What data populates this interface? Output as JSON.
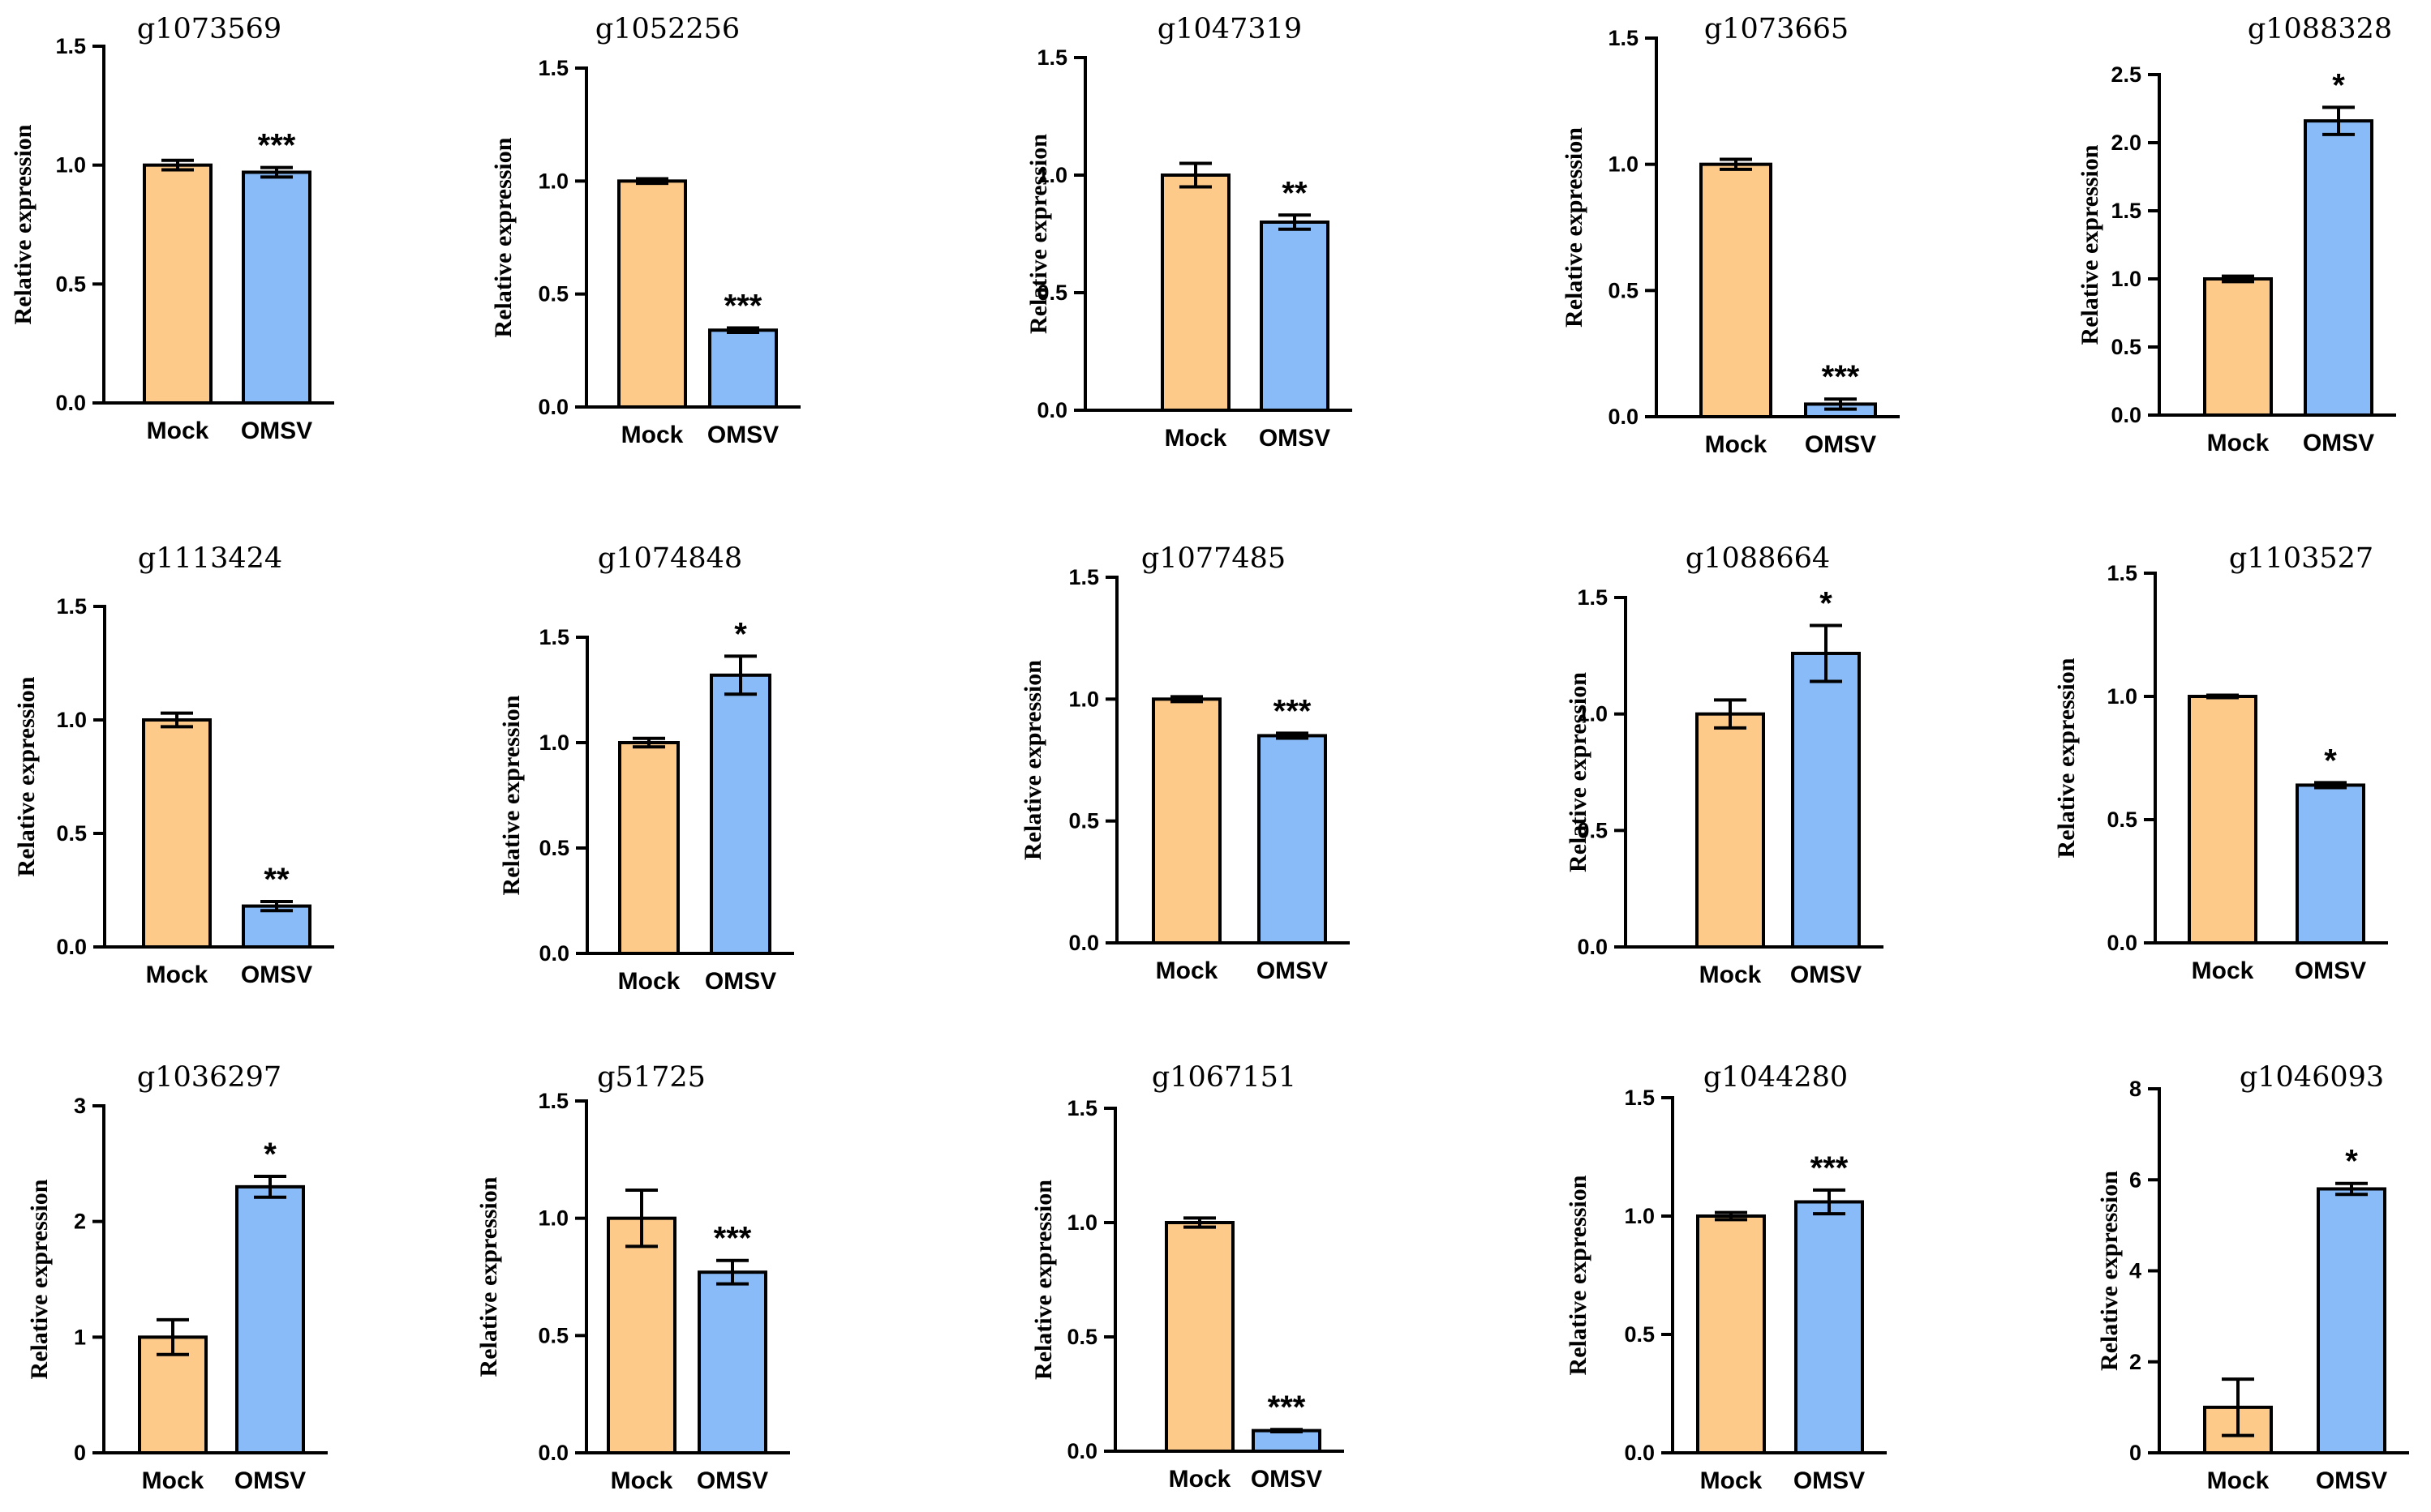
{
  "colors": {
    "mock": "#fdca8a",
    "omsv": "#88bbf8",
    "stroke": "#000000"
  },
  "chart_data": [
    {
      "type": "bar",
      "title": "g1073569",
      "ylabel": "Relative expression",
      "categories": [
        "Mock",
        "OMSV"
      ],
      "values": [
        1.0,
        0.97
      ],
      "errors": [
        0.02,
        0.02
      ],
      "ylim": [
        0,
        1.5
      ],
      "yticks": [
        0,
        0.5,
        1.0,
        1.5
      ],
      "tick_labels": [
        "0.0",
        "0.5",
        "1.0",
        "1.5"
      ],
      "significance": [
        "",
        "***"
      ]
    },
    {
      "type": "bar",
      "title": "g1052256",
      "ylabel": "Relative expression",
      "categories": [
        "Mock",
        "OMSV"
      ],
      "values": [
        1.0,
        0.34
      ],
      "errors": [
        0.01,
        0.01
      ],
      "ylim": [
        0,
        1.5
      ],
      "yticks": [
        0,
        0.5,
        1.0,
        1.5
      ],
      "tick_labels": [
        "0.0",
        "0.5",
        "1.0",
        "1.5"
      ],
      "significance": [
        "",
        "***"
      ]
    },
    {
      "type": "bar",
      "title": "g1047319",
      "ylabel": "Relative expression",
      "categories": [
        "Mock",
        "OMSV"
      ],
      "values": [
        1.0,
        0.8
      ],
      "errors": [
        0.05,
        0.03
      ],
      "ylim": [
        0,
        1.5
      ],
      "yticks": [
        0,
        0.5,
        1.0,
        1.5
      ],
      "tick_labels": [
        "0.0",
        "0.5",
        "1.0",
        "1.5"
      ],
      "significance": [
        "",
        "**"
      ]
    },
    {
      "type": "bar",
      "title": "g1073665",
      "ylabel": "Relative expression",
      "categories": [
        "Mock",
        "OMSV"
      ],
      "values": [
        1.0,
        0.05
      ],
      "errors": [
        0.02,
        0.02
      ],
      "ylim": [
        0,
        1.5
      ],
      "yticks": [
        0,
        0.5,
        1.0,
        1.5
      ],
      "tick_labels": [
        "0.0",
        "0.5",
        "1.0",
        "1.5"
      ],
      "significance": [
        "",
        "***"
      ]
    },
    {
      "type": "bar",
      "title": "g1088328",
      "ylabel": "Relative expression",
      "categories": [
        "Mock",
        "OMSV"
      ],
      "values": [
        1.0,
        2.16
      ],
      "errors": [
        0.02,
        0.1
      ],
      "ylim": [
        0,
        2.5
      ],
      "yticks": [
        0,
        0.5,
        1.0,
        1.5,
        2.0,
        2.5
      ],
      "tick_labels": [
        "0.0",
        "0.5",
        "1.0",
        "1.5",
        "2.0",
        "2.5"
      ],
      "significance": [
        "",
        "*"
      ]
    },
    {
      "type": "bar",
      "title": "g1113424",
      "ylabel": "Relative expression",
      "categories": [
        "Mock",
        "OMSV"
      ],
      "values": [
        1.0,
        0.18
      ],
      "errors": [
        0.03,
        0.02
      ],
      "ylim": [
        0,
        1.5
      ],
      "yticks": [
        0,
        0.5,
        1.0,
        1.5
      ],
      "tick_labels": [
        "0.0",
        "0.5",
        "1.0",
        "1.5"
      ],
      "significance": [
        "",
        "**"
      ]
    },
    {
      "type": "bar",
      "title": "g1074848",
      "ylabel": "Relative expression",
      "categories": [
        "Mock",
        "OMSV"
      ],
      "values": [
        1.0,
        1.32
      ],
      "errors": [
        0.02,
        0.09
      ],
      "ylim": [
        0,
        1.5
      ],
      "yticks": [
        0,
        0.5,
        1.0,
        1.5
      ],
      "tick_labels": [
        "0.0",
        "0.5",
        "1.0",
        "1.5"
      ],
      "significance": [
        "",
        "*"
      ]
    },
    {
      "type": "bar",
      "title": "g1077485",
      "ylabel": "Relative expression",
      "categories": [
        "Mock",
        "OMSV"
      ],
      "values": [
        1.0,
        0.85
      ],
      "errors": [
        0.01,
        0.01
      ],
      "ylim": [
        0,
        1.5
      ],
      "yticks": [
        0,
        0.5,
        1.0,
        1.5
      ],
      "tick_labels": [
        "0.0",
        "0.5",
        "1.0",
        "1.5"
      ],
      "significance": [
        "",
        "***"
      ]
    },
    {
      "type": "bar",
      "title": "g1088664",
      "ylabel": "Relative expression",
      "categories": [
        "Mock",
        "OMSV"
      ],
      "values": [
        1.0,
        1.26
      ],
      "errors": [
        0.06,
        0.12
      ],
      "ylim": [
        0,
        1.5
      ],
      "yticks": [
        0,
        0.5,
        1.0,
        1.5
      ],
      "tick_labels": [
        "0.0",
        "0.5",
        "1.0",
        "1.5"
      ],
      "significance": [
        "",
        "*"
      ]
    },
    {
      "type": "bar",
      "title": "g1103527",
      "ylabel": "Relative expression",
      "categories": [
        "Mock",
        "OMSV"
      ],
      "values": [
        1.0,
        0.64
      ],
      "errors": [
        0.005,
        0.01
      ],
      "ylim": [
        0,
        1.5
      ],
      "yticks": [
        0,
        0.5,
        1.0,
        1.5
      ],
      "tick_labels": [
        "0.0",
        "0.5",
        "1.0",
        "1.5"
      ],
      "significance": [
        "",
        "*"
      ]
    },
    {
      "type": "bar",
      "title": "g1036297",
      "ylabel": "Relative expression",
      "categories": [
        "Mock",
        "OMSV"
      ],
      "values": [
        1.0,
        2.3
      ],
      "errors": [
        0.15,
        0.09
      ],
      "ylim": [
        0,
        3
      ],
      "yticks": [
        0,
        1,
        2,
        3
      ],
      "tick_labels": [
        "0",
        "1",
        "2",
        "3"
      ],
      "significance": [
        "",
        "*"
      ]
    },
    {
      "type": "bar",
      "title": "g51725",
      "ylabel": "Relative expression",
      "categories": [
        "Mock",
        "OMSV"
      ],
      "values": [
        1.0,
        0.77
      ],
      "errors": [
        0.12,
        0.05
      ],
      "ylim": [
        0,
        1.5
      ],
      "yticks": [
        0,
        0.5,
        1.0,
        1.5
      ],
      "tick_labels": [
        "0.0",
        "0.5",
        "1.0",
        "1.5"
      ],
      "significance": [
        "",
        "***"
      ]
    },
    {
      "type": "bar",
      "title": "g1067151",
      "ylabel": "Relative expression",
      "categories": [
        "Mock",
        "OMSV"
      ],
      "values": [
        1.0,
        0.09
      ],
      "errors": [
        0.02,
        0.005
      ],
      "ylim": [
        0,
        1.5
      ],
      "yticks": [
        0,
        0.5,
        1.0,
        1.5
      ],
      "tick_labels": [
        "0.0",
        "0.5",
        "1.0",
        "1.5"
      ],
      "significance": [
        "",
        "***"
      ]
    },
    {
      "type": "bar",
      "title": "g1044280",
      "ylabel": "Relative expression",
      "categories": [
        "Mock",
        "OMSV"
      ],
      "values": [
        1.0,
        1.06
      ],
      "errors": [
        0.015,
        0.05
      ],
      "ylim": [
        0,
        1.5
      ],
      "yticks": [
        0,
        0.5,
        1.0,
        1.5
      ],
      "tick_labels": [
        "0.0",
        "0.5",
        "1.0",
        "1.5"
      ],
      "significance": [
        "",
        "***"
      ]
    },
    {
      "type": "bar",
      "title": "g1046093",
      "ylabel": "Relative expression",
      "categories": [
        "Mock",
        "OMSV"
      ],
      "values": [
        1.0,
        5.8
      ],
      "errors": [
        0.62,
        0.12
      ],
      "ylim": [
        0,
        8
      ],
      "yticks": [
        0,
        2,
        4,
        6,
        8
      ],
      "tick_labels": [
        "0",
        "2",
        "4",
        "6",
        "8"
      ],
      "significance": [
        "",
        "*"
      ]
    }
  ]
}
